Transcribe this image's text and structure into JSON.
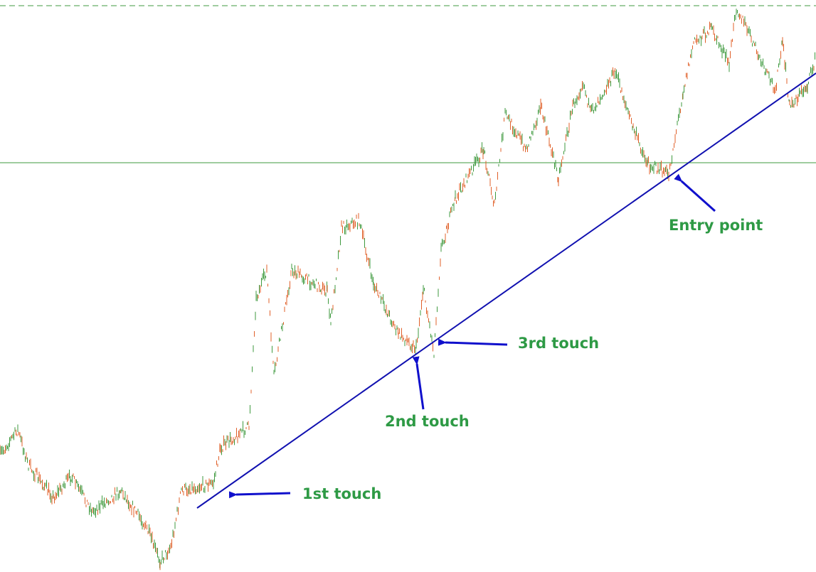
{
  "annotations": [
    "1st touch",
    "2nd touch",
    "3rd touch",
    "Entry point"
  ]
}
